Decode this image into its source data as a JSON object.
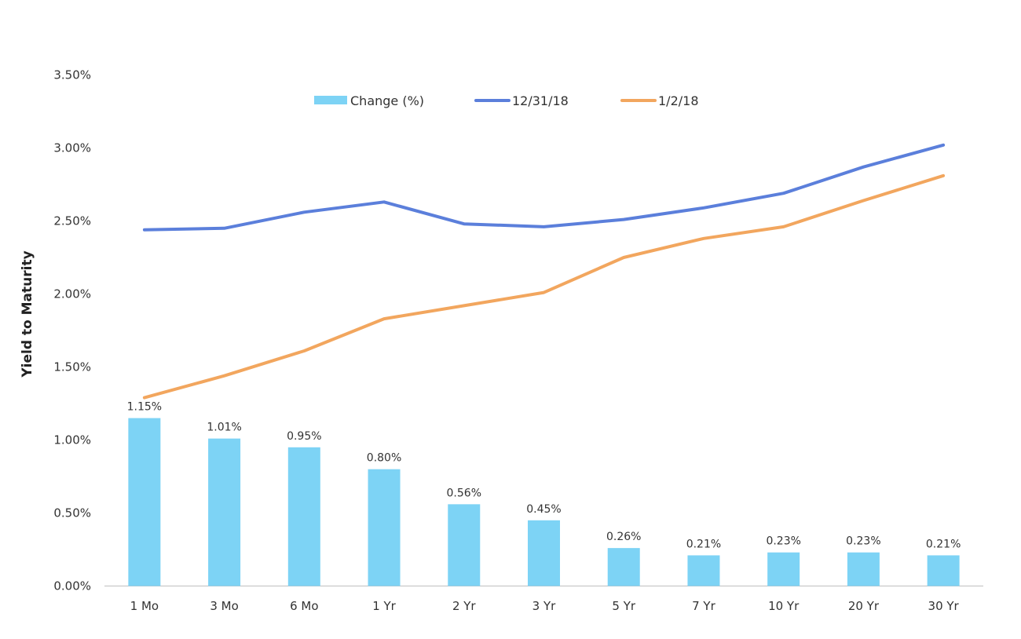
{
  "chart_data": {
    "type": "bar",
    "title": "",
    "ylabel": "Yield to Maturity",
    "xlabel": "",
    "ylim": [
      0,
      3.5
    ],
    "yticks": [
      "0.00%",
      "0.50%",
      "1.00%",
      "1.50%",
      "2.00%",
      "2.50%",
      "3.00%",
      "3.50%"
    ],
    "categories": [
      "1 Mo",
      "3 Mo",
      "6 Mo",
      "1 Yr",
      "2 Yr",
      "3 Yr",
      "5 Yr",
      "7 Yr",
      "10 Yr",
      "20 Yr",
      "30 Yr"
    ],
    "series": [
      {
        "name": "Change (%)",
        "type": "bar",
        "color": "#7dd3f5",
        "values": [
          1.15,
          1.01,
          0.95,
          0.8,
          0.56,
          0.45,
          0.26,
          0.21,
          0.23,
          0.23,
          0.21
        ],
        "labels": [
          "1.15%",
          "1.01%",
          "0.95%",
          "0.80%",
          "0.56%",
          "0.45%",
          "0.26%",
          "0.21%",
          "0.23%",
          "0.23%",
          "0.21%"
        ]
      },
      {
        "name": "12/31/18",
        "type": "line",
        "color": "#5b7fdb",
        "values": [
          2.44,
          2.45,
          2.56,
          2.63,
          2.48,
          2.46,
          2.51,
          2.59,
          2.69,
          2.87,
          3.02
        ]
      },
      {
        "name": "1/2/18",
        "type": "line",
        "color": "#f2a65e",
        "values": [
          1.29,
          1.44,
          1.61,
          1.83,
          1.92,
          2.01,
          2.25,
          2.38,
          2.46,
          2.64,
          2.81
        ]
      }
    ],
    "legend": "top-center",
    "grid": false
  }
}
